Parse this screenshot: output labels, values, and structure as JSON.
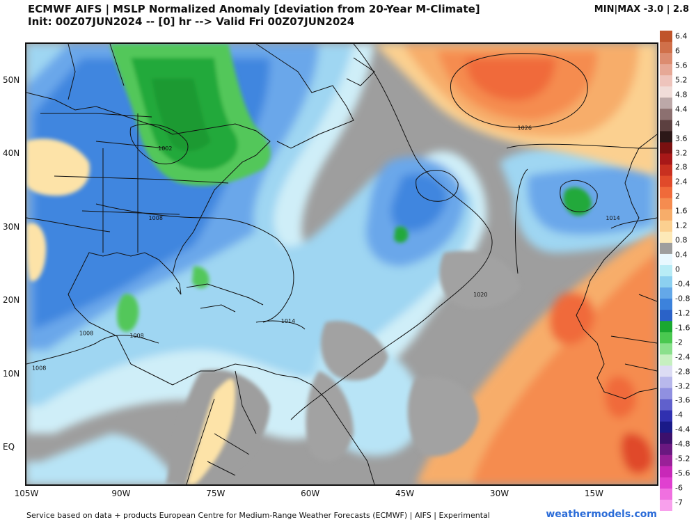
{
  "header": {
    "title_line1": "ECMWF AIFS | MSLP Normalized Anomaly [deviation from 20-Year M-Climate]",
    "title_line2": "Init: 00Z07JUN2024 -- [0] hr --> Valid Fri 00Z07JUN2024",
    "minmax": "MIN|MAX -3.0 | 2.8"
  },
  "map": {
    "lat_labels": [
      {
        "text": "50N",
        "lat": 50
      },
      {
        "text": "40N",
        "lat": 40
      },
      {
        "text": "30N",
        "lat": 30
      },
      {
        "text": "20N",
        "lat": 20
      },
      {
        "text": "10N",
        "lat": 10
      },
      {
        "text": "EQ",
        "lat": 0
      }
    ],
    "lon_labels": [
      {
        "text": "105W",
        "lon": -105
      },
      {
        "text": "90W",
        "lon": -90
      },
      {
        "text": "75W",
        "lon": -75
      },
      {
        "text": "60W",
        "lon": -60
      },
      {
        "text": "45W",
        "lon": -45
      },
      {
        "text": "30W",
        "lon": -30
      },
      {
        "text": "15W",
        "lon": -15
      }
    ],
    "lon_range": [
      -105,
      -5
    ],
    "lat_range": [
      -5,
      55
    ],
    "isobar_labels": [
      {
        "text": "1026",
        "lon": -26,
        "lat": 43.5
      },
      {
        "text": "1002",
        "lon": -83,
        "lat": 40.7
      },
      {
        "text": "1008",
        "lon": -84.5,
        "lat": 31.2
      },
      {
        "text": "1014",
        "lon": -12,
        "lat": 31.2
      },
      {
        "text": "1020",
        "lon": -33,
        "lat": 20.8
      },
      {
        "text": "1014",
        "lon": -63.5,
        "lat": 17.2
      },
      {
        "text": "1008",
        "lon": -95.5,
        "lat": 15.5
      },
      {
        "text": "1008",
        "lon": -87.5,
        "lat": 15.2
      },
      {
        "text": "1008",
        "lon": -103,
        "lat": 10.8
      }
    ]
  },
  "colorbar": {
    "labels": [
      "6.4",
      "6",
      "5.6",
      "5.2",
      "4.8",
      "4.4",
      "4",
      "3.6",
      "3.2",
      "2.8",
      "2.4",
      "2",
      "1.6",
      "1.2",
      "0.8",
      "0.4",
      "0",
      "-0.4",
      "-0.8",
      "-1.2",
      "-1.6",
      "-2",
      "-2.4",
      "-2.8",
      "-3.2",
      "-3.6",
      "-4",
      "-4.4",
      "-4.8",
      "-5.2",
      "-5.6",
      "-6",
      "-7"
    ],
    "colors": [
      "#c0542a",
      "#d0704a",
      "#dc8c70",
      "#e6a896",
      "#eec4bc",
      "#f0dcd8",
      "#bca8a8",
      "#8c7070",
      "#5c4040",
      "#2c1818",
      "#7a1010",
      "#a81818",
      "#c83020",
      "#e04a2a",
      "#f06a3a",
      "#f58c50",
      "#f7ad6a",
      "#fbd090",
      "#fde9b8",
      "#9e9e9e",
      "#e8f8ff",
      "#b8ecf6",
      "#8cd0f0",
      "#64a8e8",
      "#3c82dc",
      "#2a62c8",
      "#1aa830",
      "#4ac850",
      "#8ae08c",
      "#c6f0c0",
      "#dcdcf4",
      "#b8b8ec",
      "#9090e0",
      "#6060cc",
      "#3030b0",
      "#1a1a88",
      "#3c106c",
      "#6a1880",
      "#9a2098",
      "#c828b8",
      "#e040d0",
      "#f070e0",
      "#f8a0ec"
    ]
  },
  "footer": {
    "left": "Service based on data + products European Centre for Medium-Range Weather Forecasts (ECMWF) | AIFS | Experimental",
    "right": "weathermodels.com"
  }
}
